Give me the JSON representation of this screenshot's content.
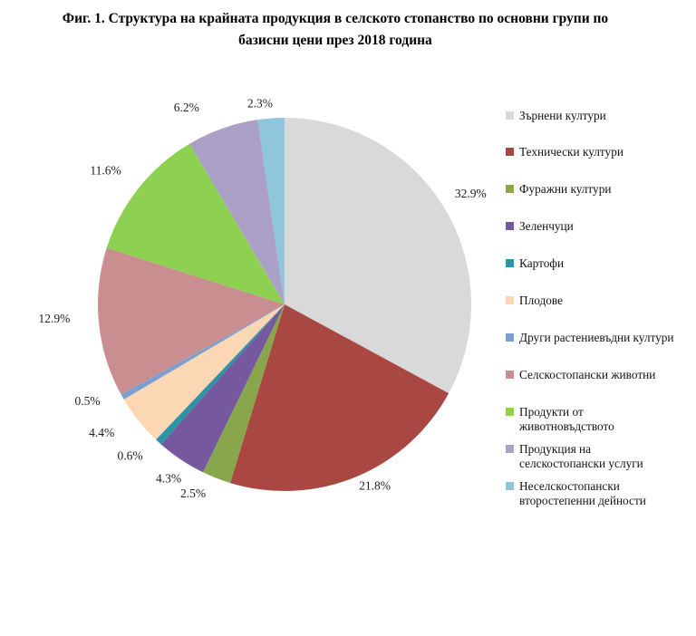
{
  "figure": {
    "title_line1": "Фиг. 1. Структура на крайната продукция в селското стопанство по основни групи по",
    "title_line2": "базисни цени през 2018 година"
  },
  "chart_data": {
    "type": "pie",
    "title": "Фиг. 1. Структура на крайната продукция в селското стопанство по основни групи по базисни цени през 2018 година",
    "unit": "percent",
    "total": 100.0,
    "start_angle_deg": 0,
    "direction": "clockwise",
    "legend_position": "right",
    "data_labels": "outside, one decimal, percent sign",
    "slices": [
      {
        "label": "Зърнени култури",
        "value": 32.9,
        "color": "#d9d9d9",
        "legend_label": "Зърнени култури"
      },
      {
        "label": "Технически култури",
        "value": 21.8,
        "color": "#a94742",
        "legend_label": "Технически култури"
      },
      {
        "label": "Фуражни култури",
        "value": 2.5,
        "color": "#8aa64d",
        "legend_label": "Фуражни култури"
      },
      {
        "label": "Зеленчуци",
        "value": 4.3,
        "color": "#76589e",
        "legend_label": "Зеленчуци"
      },
      {
        "label": "Картофи",
        "value": 0.6,
        "color": "#2f93a6",
        "legend_label": "Картофи"
      },
      {
        "label": "Плодове",
        "value": 4.4,
        "color": "#fbd7b3",
        "legend_label": "Плодове"
      },
      {
        "label": "Други растениевъдни култури",
        "value": 0.5,
        "color": "#7d9fd0",
        "legend_label": "Други растениевъдни култури"
      },
      {
        "label": "Селскостопански животни",
        "value": 12.9,
        "color": "#c98e8f",
        "legend_label": "Селскостопански животни"
      },
      {
        "label": "Продукти от животновъдството",
        "value": 11.6,
        "color": "#8ed051",
        "legend_label": "Продукти от\nживотновъдството"
      },
      {
        "label": "Продукция на селскостопански услуги",
        "value": 6.2,
        "color": "#aba1c7",
        "legend_label": "Продукция на\nселскостопански услуги"
      },
      {
        "label": "Неселскостопански второстепенни дейности",
        "value": 2.3,
        "color": "#8fc6dc",
        "legend_label": "Неселскостопански\nвторостепенни дейности"
      }
    ]
  }
}
